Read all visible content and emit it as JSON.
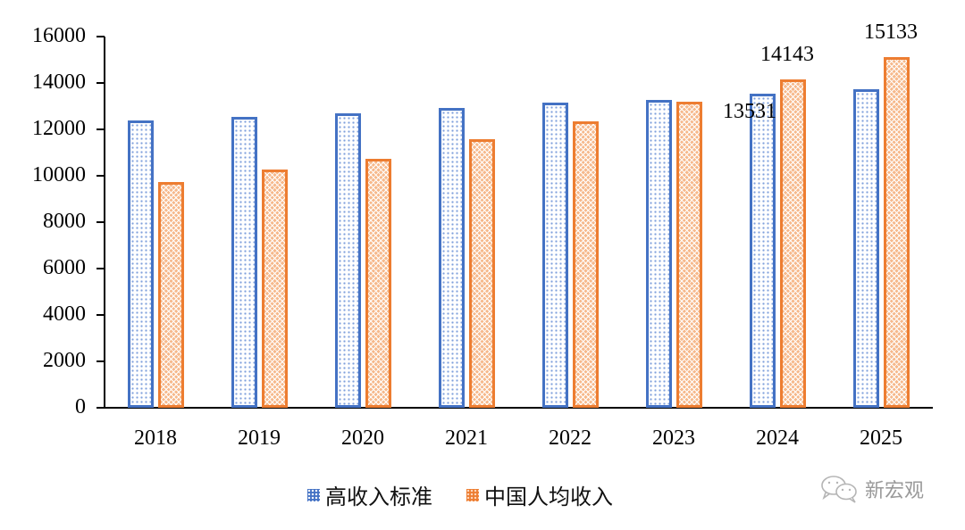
{
  "chart_data": {
    "type": "bar",
    "title": "",
    "xlabel": "",
    "ylabel": "",
    "categories": [
      "2018",
      "2019",
      "2020",
      "2021",
      "2022",
      "2023",
      "2024",
      "2025"
    ],
    "series": [
      {
        "name": "高收入标准",
        "color": "#4472C4",
        "values": [
          12375,
          12535,
          12695,
          12935,
          13145,
          13285,
          13531,
          13745
        ]
      },
      {
        "name": "中国人均收入",
        "color": "#ED7D31",
        "values": [
          9732,
          10276,
          10735,
          11560,
          12350,
          13200,
          14143,
          15133
        ]
      }
    ],
    "data_labels": [
      {
        "series": "高收入标准",
        "category": "2024",
        "text": "13531"
      },
      {
        "series": "中国人均收入",
        "category": "2024",
        "text": "14143"
      },
      {
        "series": "中国人均收入",
        "category": "2025",
        "text": "15133"
      }
    ],
    "ylim": [
      0,
      16000
    ],
    "yticks": [
      "0",
      "2000",
      "4000",
      "6000",
      "8000",
      "10000",
      "12000",
      "14000",
      "16000"
    ],
    "grid": false,
    "legend_position": "bottom"
  },
  "watermark": {
    "text": "新宏观",
    "icon": "wechat-icon"
  }
}
